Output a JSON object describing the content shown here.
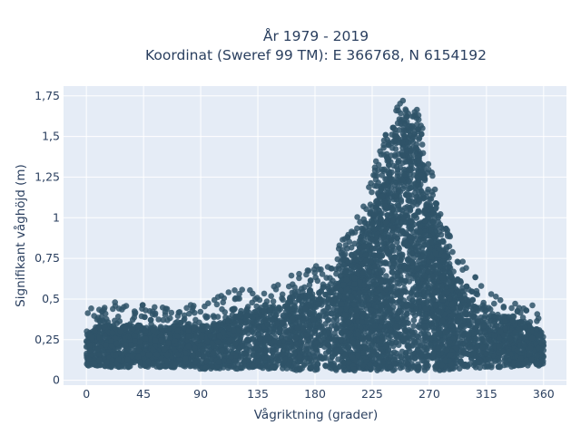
{
  "chart_data": {
    "type": "scatter",
    "title_line1": "År 1979 - 2019",
    "title_line2": "Koordinat (Sweref 99 TM): E 366768, N 6154192",
    "xlabel": "Vågriktning (grader)",
    "ylabel": "Signifikant våghöjd (m)",
    "xlim": [
      -18,
      378
    ],
    "ylim": [
      -0.03,
      1.81
    ],
    "x_ticks": [
      0,
      45,
      90,
      135,
      180,
      225,
      270,
      315,
      360
    ],
    "x_tick_labels": [
      "0",
      "45",
      "90",
      "135",
      "180",
      "225",
      "270",
      "315",
      "360"
    ],
    "y_ticks": [
      0,
      0.25,
      0.5,
      0.75,
      1,
      1.25,
      1.5,
      1.75
    ],
    "y_tick_labels": [
      "0",
      "0,25",
      "0,5",
      "0,75",
      "1",
      "1,25",
      "1,5",
      "1,75"
    ],
    "grid": true,
    "legend": "none",
    "marker_color": "#2f5469",
    "plot_bg": "#e5ecf6",
    "envelope": {
      "x": [
        0,
        10,
        20,
        30,
        45,
        60,
        75,
        90,
        105,
        120,
        135,
        150,
        165,
        180,
        195,
        210,
        220,
        230,
        240,
        245,
        250,
        255,
        260,
        265,
        270,
        280,
        290,
        300,
        315,
        330,
        345,
        360
      ],
      "y_min": [
        0.09,
        0.09,
        0.08,
        0.08,
        0.08,
        0.08,
        0.08,
        0.07,
        0.07,
        0.07,
        0.07,
        0.07,
        0.06,
        0.06,
        0.06,
        0.06,
        0.06,
        0.06,
        0.06,
        0.06,
        0.06,
        0.06,
        0.06,
        0.06,
        0.06,
        0.06,
        0.07,
        0.07,
        0.08,
        0.08,
        0.09,
        0.09
      ],
      "y_max": [
        0.45,
        0.47,
        0.48,
        0.48,
        0.47,
        0.46,
        0.46,
        0.48,
        0.52,
        0.57,
        0.55,
        0.6,
        0.68,
        0.72,
        0.8,
        0.95,
        1.15,
        1.4,
        1.62,
        1.7,
        1.73,
        1.72,
        1.68,
        1.55,
        1.38,
        1.0,
        0.82,
        0.68,
        0.58,
        0.52,
        0.48,
        0.45
      ],
      "y_dense_top": [
        0.3,
        0.32,
        0.33,
        0.33,
        0.32,
        0.32,
        0.32,
        0.33,
        0.35,
        0.4,
        0.42,
        0.45,
        0.5,
        0.55,
        0.6,
        0.72,
        0.88,
        1.1,
        1.35,
        1.45,
        1.5,
        1.5,
        1.45,
        1.3,
        1.1,
        0.78,
        0.6,
        0.5,
        0.42,
        0.38,
        0.34,
        0.3
      ]
    }
  }
}
